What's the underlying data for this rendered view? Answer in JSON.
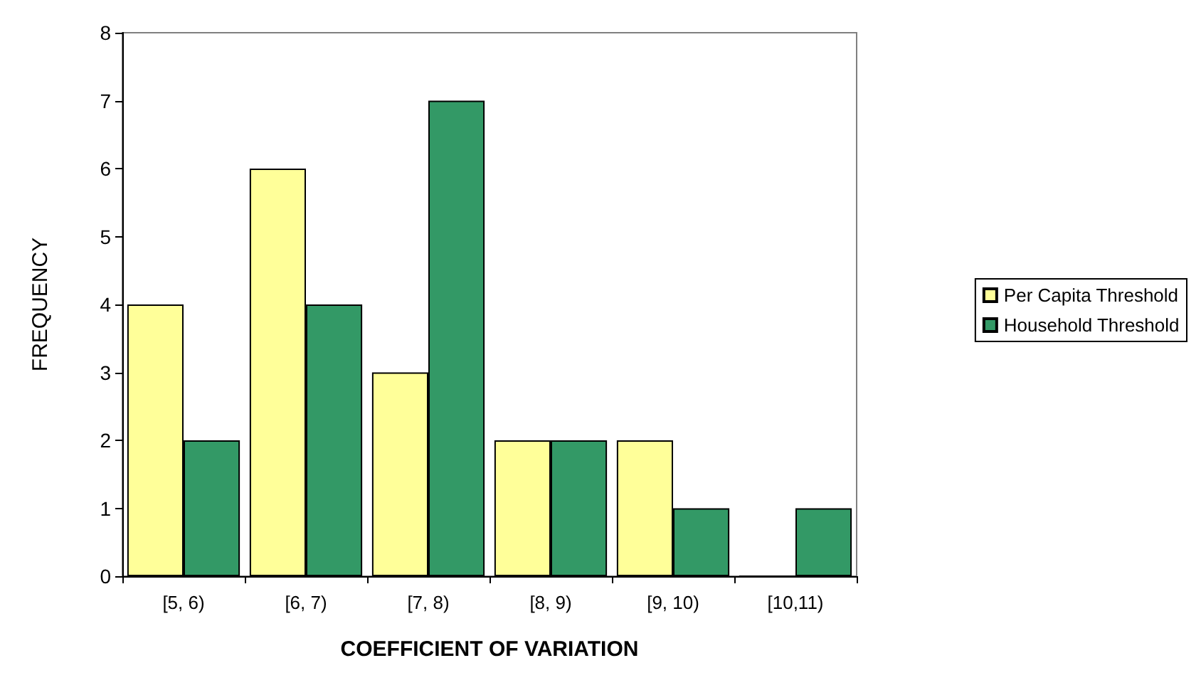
{
  "chart_data": {
    "type": "bar",
    "xlabel": "COEFFICIENT OF VARIATION",
    "ylabel": "FREQUENCY",
    "categories": [
      "[5, 6)",
      "[6, 7)",
      "[7, 8)",
      "[8, 9)",
      "[9, 10)",
      "[10,11)"
    ],
    "series": [
      {
        "name": "Per Capita Threshold",
        "color": "#ffff99",
        "values": [
          4,
          6,
          3,
          2,
          2,
          0
        ]
      },
      {
        "name": "Household Threshold",
        "color": "#339966",
        "values": [
          2,
          4,
          7,
          2,
          1,
          1
        ]
      }
    ],
    "ylim": [
      0,
      8
    ],
    "yticks": [
      0,
      1,
      2,
      3,
      4,
      5,
      6,
      7,
      8
    ],
    "grid": false,
    "legend": "right"
  }
}
